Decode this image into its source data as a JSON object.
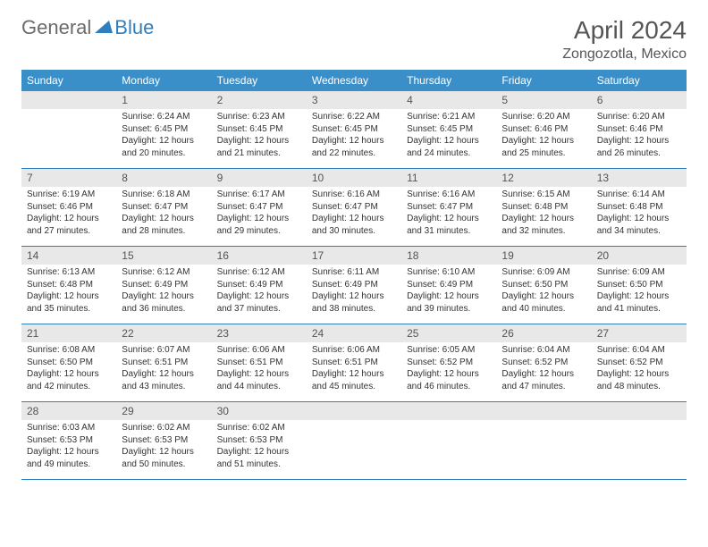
{
  "logo": {
    "text1": "General",
    "text2": "Blue"
  },
  "title": "April 2024",
  "location": "Zongozotla, Mexico",
  "colors": {
    "header_bg": "#3b8fc9",
    "header_text": "#ffffff",
    "daynum_bg": "#e8e8e8",
    "border": "#2f7fbf",
    "text": "#333333",
    "logo_gray": "#6b6b6b",
    "logo_blue": "#2f7fbf"
  },
  "day_names": [
    "Sunday",
    "Monday",
    "Tuesday",
    "Wednesday",
    "Thursday",
    "Friday",
    "Saturday"
  ],
  "weeks": [
    [
      null,
      {
        "n": "1",
        "sr": "Sunrise: 6:24 AM",
        "ss": "Sunset: 6:45 PM",
        "dl": "Daylight: 12 hours and 20 minutes."
      },
      {
        "n": "2",
        "sr": "Sunrise: 6:23 AM",
        "ss": "Sunset: 6:45 PM",
        "dl": "Daylight: 12 hours and 21 minutes."
      },
      {
        "n": "3",
        "sr": "Sunrise: 6:22 AM",
        "ss": "Sunset: 6:45 PM",
        "dl": "Daylight: 12 hours and 22 minutes."
      },
      {
        "n": "4",
        "sr": "Sunrise: 6:21 AM",
        "ss": "Sunset: 6:45 PM",
        "dl": "Daylight: 12 hours and 24 minutes."
      },
      {
        "n": "5",
        "sr": "Sunrise: 6:20 AM",
        "ss": "Sunset: 6:46 PM",
        "dl": "Daylight: 12 hours and 25 minutes."
      },
      {
        "n": "6",
        "sr": "Sunrise: 6:20 AM",
        "ss": "Sunset: 6:46 PM",
        "dl": "Daylight: 12 hours and 26 minutes."
      }
    ],
    [
      {
        "n": "7",
        "sr": "Sunrise: 6:19 AM",
        "ss": "Sunset: 6:46 PM",
        "dl": "Daylight: 12 hours and 27 minutes."
      },
      {
        "n": "8",
        "sr": "Sunrise: 6:18 AM",
        "ss": "Sunset: 6:47 PM",
        "dl": "Daylight: 12 hours and 28 minutes."
      },
      {
        "n": "9",
        "sr": "Sunrise: 6:17 AM",
        "ss": "Sunset: 6:47 PM",
        "dl": "Daylight: 12 hours and 29 minutes."
      },
      {
        "n": "10",
        "sr": "Sunrise: 6:16 AM",
        "ss": "Sunset: 6:47 PM",
        "dl": "Daylight: 12 hours and 30 minutes."
      },
      {
        "n": "11",
        "sr": "Sunrise: 6:16 AM",
        "ss": "Sunset: 6:47 PM",
        "dl": "Daylight: 12 hours and 31 minutes."
      },
      {
        "n": "12",
        "sr": "Sunrise: 6:15 AM",
        "ss": "Sunset: 6:48 PM",
        "dl": "Daylight: 12 hours and 32 minutes."
      },
      {
        "n": "13",
        "sr": "Sunrise: 6:14 AM",
        "ss": "Sunset: 6:48 PM",
        "dl": "Daylight: 12 hours and 34 minutes."
      }
    ],
    [
      {
        "n": "14",
        "sr": "Sunrise: 6:13 AM",
        "ss": "Sunset: 6:48 PM",
        "dl": "Daylight: 12 hours and 35 minutes."
      },
      {
        "n": "15",
        "sr": "Sunrise: 6:12 AM",
        "ss": "Sunset: 6:49 PM",
        "dl": "Daylight: 12 hours and 36 minutes."
      },
      {
        "n": "16",
        "sr": "Sunrise: 6:12 AM",
        "ss": "Sunset: 6:49 PM",
        "dl": "Daylight: 12 hours and 37 minutes."
      },
      {
        "n": "17",
        "sr": "Sunrise: 6:11 AM",
        "ss": "Sunset: 6:49 PM",
        "dl": "Daylight: 12 hours and 38 minutes."
      },
      {
        "n": "18",
        "sr": "Sunrise: 6:10 AM",
        "ss": "Sunset: 6:49 PM",
        "dl": "Daylight: 12 hours and 39 minutes."
      },
      {
        "n": "19",
        "sr": "Sunrise: 6:09 AM",
        "ss": "Sunset: 6:50 PM",
        "dl": "Daylight: 12 hours and 40 minutes."
      },
      {
        "n": "20",
        "sr": "Sunrise: 6:09 AM",
        "ss": "Sunset: 6:50 PM",
        "dl": "Daylight: 12 hours and 41 minutes."
      }
    ],
    [
      {
        "n": "21",
        "sr": "Sunrise: 6:08 AM",
        "ss": "Sunset: 6:50 PM",
        "dl": "Daylight: 12 hours and 42 minutes."
      },
      {
        "n": "22",
        "sr": "Sunrise: 6:07 AM",
        "ss": "Sunset: 6:51 PM",
        "dl": "Daylight: 12 hours and 43 minutes."
      },
      {
        "n": "23",
        "sr": "Sunrise: 6:06 AM",
        "ss": "Sunset: 6:51 PM",
        "dl": "Daylight: 12 hours and 44 minutes."
      },
      {
        "n": "24",
        "sr": "Sunrise: 6:06 AM",
        "ss": "Sunset: 6:51 PM",
        "dl": "Daylight: 12 hours and 45 minutes."
      },
      {
        "n": "25",
        "sr": "Sunrise: 6:05 AM",
        "ss": "Sunset: 6:52 PM",
        "dl": "Daylight: 12 hours and 46 minutes."
      },
      {
        "n": "26",
        "sr": "Sunrise: 6:04 AM",
        "ss": "Sunset: 6:52 PM",
        "dl": "Daylight: 12 hours and 47 minutes."
      },
      {
        "n": "27",
        "sr": "Sunrise: 6:04 AM",
        "ss": "Sunset: 6:52 PM",
        "dl": "Daylight: 12 hours and 48 minutes."
      }
    ],
    [
      {
        "n": "28",
        "sr": "Sunrise: 6:03 AM",
        "ss": "Sunset: 6:53 PM",
        "dl": "Daylight: 12 hours and 49 minutes."
      },
      {
        "n": "29",
        "sr": "Sunrise: 6:02 AM",
        "ss": "Sunset: 6:53 PM",
        "dl": "Daylight: 12 hours and 50 minutes."
      },
      {
        "n": "30",
        "sr": "Sunrise: 6:02 AM",
        "ss": "Sunset: 6:53 PM",
        "dl": "Daylight: 12 hours and 51 minutes."
      },
      null,
      null,
      null,
      null
    ]
  ]
}
